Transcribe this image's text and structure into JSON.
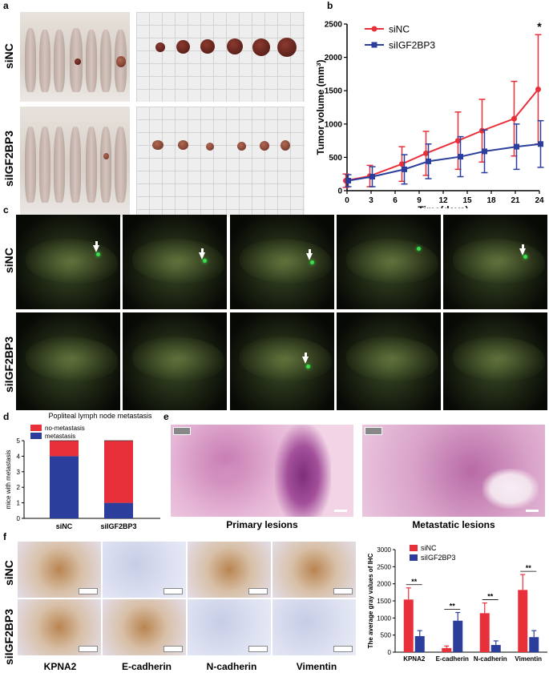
{
  "panels": {
    "a": {
      "label": "a",
      "row_labels": [
        "siNC",
        "siIGF2BP3"
      ]
    },
    "b": {
      "label": "b"
    },
    "c": {
      "label": "c",
      "row_labels": [
        "siNC",
        "siIGF2BP3"
      ]
    },
    "d": {
      "label": "d"
    },
    "e": {
      "label": "e",
      "captions": [
        "Primary lesions",
        "Metastatic lesions"
      ]
    },
    "f": {
      "label": "f",
      "row_labels": [
        "siNC",
        "siIGF2BP3"
      ],
      "columns": [
        "KPNA2",
        "E-cadherin",
        "N-cadherin",
        "Vimentin"
      ]
    }
  },
  "chart_data": [
    {
      "id": "tumor-volume",
      "type": "line",
      "title": "",
      "xlabel": "Time(days)",
      "ylabel": "Tumor volume (mm3)",
      "ylabel_main": "Tumor volume (mm",
      "ylabel_sup": "3",
      "ylabel_end": ")",
      "x": [
        0,
        3,
        7,
        10,
        14,
        17,
        21,
        24
      ],
      "xticks": [
        "0",
        "3",
        "6",
        "9",
        "12",
        "15",
        "18",
        "21",
        "24"
      ],
      "xtick_values": [
        0,
        3,
        6,
        9,
        12,
        15,
        18,
        21,
        24
      ],
      "yticks": [
        "0",
        "500",
        "1000",
        "1500",
        "2000",
        "2500"
      ],
      "ytick_values": [
        0,
        500,
        1000,
        1500,
        2000,
        2500
      ],
      "xlim": [
        0,
        24
      ],
      "ylim": [
        0,
        2500
      ],
      "legend_position": "top-left",
      "series": [
        {
          "name": "siNC",
          "color": "#e8303a",
          "values": [
            150,
            220,
            400,
            560,
            750,
            900,
            1080,
            1520
          ],
          "err": [
            100,
            160,
            260,
            330,
            430,
            470,
            560,
            820
          ]
        },
        {
          "name": "siIGF2BP3",
          "color": "#2b3e9c",
          "values": [
            150,
            210,
            320,
            440,
            510,
            590,
            660,
            700
          ],
          "err": [
            90,
            150,
            220,
            260,
            300,
            320,
            340,
            350
          ]
        }
      ],
      "annotations": [
        {
          "text": "*",
          "x": 24
        }
      ]
    },
    {
      "id": "metastasis",
      "type": "bar",
      "stacked": true,
      "title": "Popliteal lymph node metastasis",
      "xlabel": "",
      "ylabel": "mice with metastasis",
      "categories": [
        "siNC",
        "siIGF2BP3"
      ],
      "ylim": [
        0,
        5
      ],
      "yticks": [
        "0",
        "1",
        "2",
        "3",
        "4",
        "5"
      ],
      "ytick_values": [
        0,
        1,
        2,
        3,
        4,
        5
      ],
      "legend_position": "top-left",
      "series": [
        {
          "name": "metastasis",
          "color": "#2b3e9c",
          "values": [
            4,
            1
          ]
        },
        {
          "name": "no-metastasis",
          "color": "#e8303a",
          "values": [
            1,
            4
          ]
        }
      ]
    },
    {
      "id": "ihc-gray",
      "type": "bar",
      "title": "",
      "xlabel": "",
      "ylabel": "The average gray values of IHC",
      "categories": [
        "KPNA2",
        "E-cadherin",
        "N-cadherin",
        "Vimentin"
      ],
      "ylim": [
        0,
        3000
      ],
      "yticks": [
        "0",
        "500",
        "1000",
        "1500",
        "2000",
        "2500",
        "3000"
      ],
      "ytick_values": [
        0,
        500,
        1000,
        1500,
        2000,
        2500,
        3000
      ],
      "legend_position": "top-left",
      "series": [
        {
          "name": "siNC",
          "color": "#e8303a",
          "values": [
            1540,
            120,
            1140,
            1820
          ],
          "err": [
            340,
            60,
            300,
            450
          ]
        },
        {
          "name": "siIGF2BP3",
          "color": "#2b3e9c",
          "values": [
            470,
            920,
            210,
            440
          ],
          "err": [
            160,
            240,
            120,
            190
          ]
        }
      ],
      "annotations": [
        {
          "text": "**"
        },
        {
          "text": "**"
        },
        {
          "text": "**"
        },
        {
          "text": "**"
        }
      ]
    }
  ]
}
